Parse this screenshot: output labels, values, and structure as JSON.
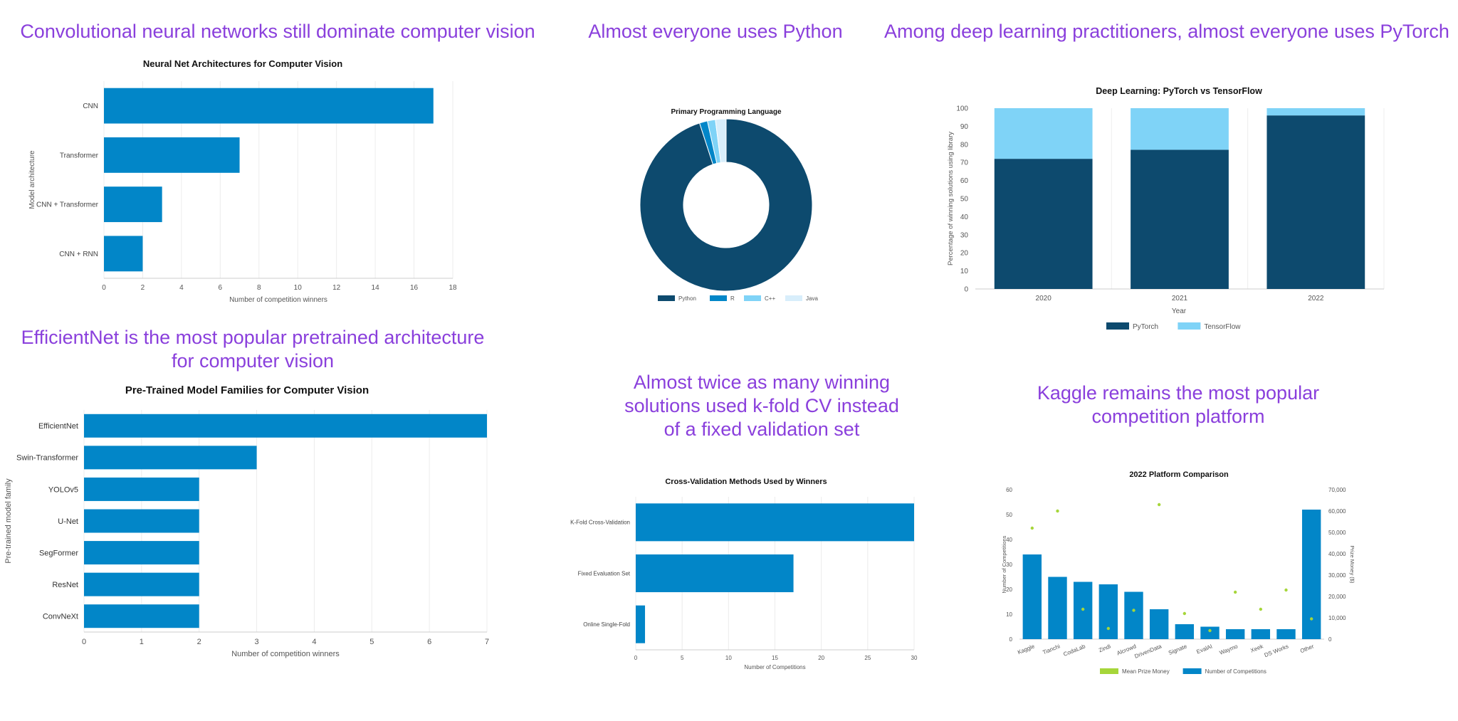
{
  "headlines": {
    "cnn": "Convolutional neural networks still dominate computer vision",
    "python": "Almost everyone uses Python",
    "pytorch": "Among deep learning practitioners, almost everyone uses PyTorch",
    "efficientnet_line1": "EfficientNet is the most popular pretrained architecture",
    "efficientnet_line2": "for computer vision",
    "kfold_line1": "Almost twice as many winning",
    "kfold_line2": "solutions used k-fold CV instead",
    "kfold_line3": "of a fixed validation set",
    "kaggle_line1": "Kaggle remains the most popular",
    "kaggle_line2": "competition platform"
  },
  "colors": {
    "headline": "#8a3fdc",
    "bar": "#0286c8",
    "dark": "#0d4a6e",
    "light": "#7fd3f7",
    "pale": "#d8eefb",
    "green": "#a6d63a"
  },
  "chart_data": [
    {
      "id": "arch",
      "type": "bar",
      "orientation": "horizontal",
      "title": "Neural Net Architectures for Computer Vision",
      "categories": [
        "CNN",
        "Transformer",
        "CNN + Transformer",
        "CNN + RNN"
      ],
      "values": [
        17,
        7,
        3,
        2
      ],
      "xlabel": "Number of competition winners",
      "ylabel": "Model architecture",
      "xlim": [
        0,
        18
      ],
      "xticks": [
        0,
        2,
        4,
        6,
        8,
        10,
        12,
        14,
        16,
        18
      ]
    },
    {
      "id": "lang",
      "type": "pie",
      "donut": true,
      "title": "Primary Programming Language",
      "labels": [
        "Python",
        "R",
        "C++",
        "Java"
      ],
      "values": [
        95,
        1.5,
        1.5,
        2
      ]
    },
    {
      "id": "dl",
      "type": "bar",
      "stacked": true,
      "title": "Deep Learning: PyTorch vs TensorFlow",
      "categories": [
        "2020",
        "2021",
        "2022"
      ],
      "series": [
        {
          "name": "PyTorch",
          "values": [
            72,
            77,
            96
          ]
        },
        {
          "name": "TensorFlow",
          "values": [
            28,
            23,
            4
          ]
        }
      ],
      "xlabel": "Year",
      "ylabel": "Percentage of winning solutions using library",
      "ylim": [
        0,
        100
      ],
      "yticks": [
        0,
        10,
        20,
        30,
        40,
        50,
        60,
        70,
        80,
        90,
        100
      ]
    },
    {
      "id": "pretrained",
      "type": "bar",
      "orientation": "horizontal",
      "title": "Pre-Trained Model Families for Computer Vision",
      "categories": [
        "EfficientNet",
        "Swin-Transformer",
        "YOLOv5",
        "U-Net",
        "SegFormer",
        "ResNet",
        "ConvNeXt"
      ],
      "values": [
        7,
        3,
        2,
        2,
        2,
        2,
        2
      ],
      "xlabel": "Number of competition winners",
      "ylabel": "Pre-trained model family",
      "xlim": [
        0,
        7
      ],
      "xticks": [
        0,
        1,
        2,
        3,
        4,
        5,
        6,
        7
      ]
    },
    {
      "id": "cv",
      "type": "bar",
      "orientation": "horizontal",
      "title": "Cross-Validation Methods Used by Winners",
      "categories": [
        "K-Fold Cross-Validation",
        "Fixed Evaluation Set",
        "Online Single-Fold"
      ],
      "values": [
        30,
        17,
        1
      ],
      "xlabel": "Number of Competitions",
      "xlim": [
        0,
        30
      ],
      "xticks": [
        0,
        5,
        10,
        15,
        20,
        25,
        30
      ]
    },
    {
      "id": "platform",
      "type": "bar",
      "title": "2022 Platform Comparison",
      "categories": [
        "Kaggle",
        "Tianchi",
        "CodaLab",
        "Zindi",
        "Alcrowd",
        "DrivenData",
        "Signate",
        "EvalAI",
        "Waymo",
        "Xeek",
        "DS Works",
        "Other"
      ],
      "series": [
        {
          "name": "Number of Competitions",
          "axis": "left",
          "values": [
            34,
            25,
            23,
            22,
            19,
            12,
            6,
            5,
            4,
            4,
            4,
            52
          ]
        },
        {
          "name": "Mean Prize Money",
          "axis": "right",
          "type": "scatter",
          "values": [
            52000,
            60000,
            14000,
            5000,
            13500,
            63000,
            12000,
            4000,
            22000,
            14000,
            23000,
            9500
          ]
        }
      ],
      "ylabel": "Number of Competitions",
      "y2label": "Prize Money ($)",
      "ylim": [
        0,
        60
      ],
      "yticks": [
        0,
        10,
        20,
        30,
        40,
        50,
        60
      ],
      "y2lim": [
        0,
        70000
      ],
      "y2ticks": [
        "0",
        "10,000",
        "20,000",
        "30,000",
        "40,000",
        "50,000",
        "60,000",
        "70,000"
      ],
      "legend": [
        "Mean Prize Money",
        "Number of Competitions"
      ]
    }
  ]
}
